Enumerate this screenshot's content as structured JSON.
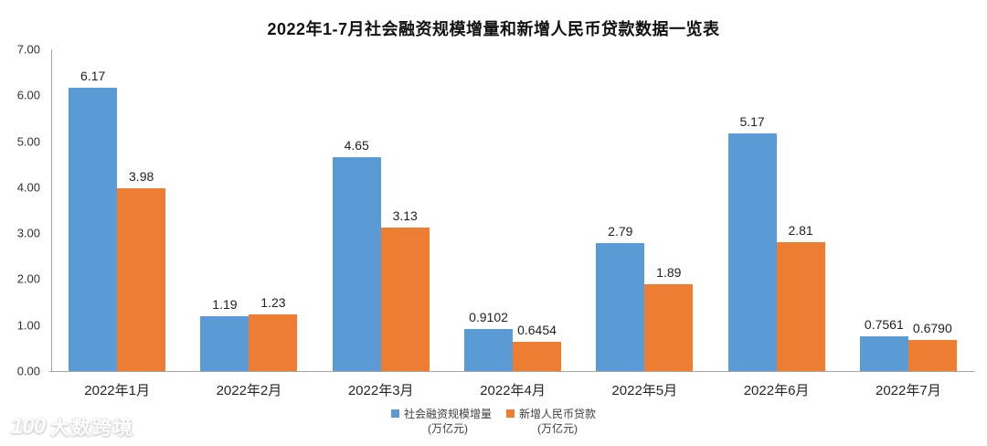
{
  "title": "2022年1-7月社会融资规模增量和新增人民币贷款数据一览表",
  "watermark": {
    "logo": "100",
    "text": "大数跨境"
  },
  "chart_data": {
    "type": "bar",
    "title": "2022年1-7月社会融资规模增量和新增人民币贷款数据一览表",
    "categories": [
      "2022年1月",
      "2022年2月",
      "2022年3月",
      "2022年4月",
      "2022年5月",
      "2022年6月",
      "2022年7月"
    ],
    "series": [
      {
        "name": "社会融资规模增量",
        "unit": "(万亿元)",
        "color": "#5B9BD5",
        "values": [
          6.17,
          1.19,
          4.65,
          0.9102,
          2.79,
          5.17,
          0.7561
        ],
        "labels": [
          "6.17",
          "1.19",
          "4.65",
          "0.9102",
          "2.79",
          "5.17",
          "0.7561"
        ]
      },
      {
        "name": "新增人民币贷款",
        "unit": "(万亿元)",
        "color": "#ED7D31",
        "values": [
          3.98,
          1.23,
          3.13,
          0.6454,
          1.89,
          2.81,
          0.679
        ],
        "labels": [
          "3.98",
          "1.23",
          "3.13",
          "0.6454",
          "1.89",
          "2.81",
          "0.6790"
        ]
      }
    ],
    "xlabel": "",
    "ylabel": "",
    "ylim": [
      0,
      7
    ],
    "ytick_step": 1,
    "ytick_labels": [
      "0.00",
      "1.00",
      "2.00",
      "3.00",
      "4.00",
      "5.00",
      "6.00",
      "7.00"
    ],
    "grid": false,
    "legend_position": "bottom",
    "axis_color": "#a6a6a6",
    "label_color": "#222222"
  }
}
